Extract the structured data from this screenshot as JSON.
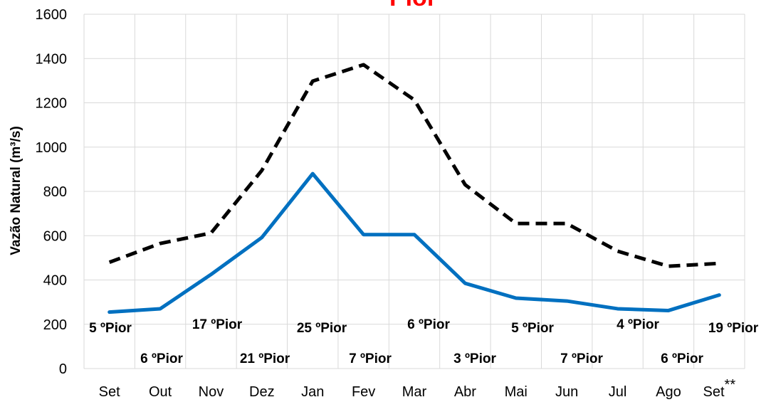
{
  "chart_data": {
    "type": "line",
    "title": "Pior",
    "title_color": "#ff0000",
    "xlabel": "",
    "ylabel": "Vazão Natural (m³/s)",
    "ylim": [
      0,
      1600
    ],
    "yticks": [
      0,
      200,
      400,
      600,
      800,
      1000,
      1200,
      1400,
      1600
    ],
    "grid": true,
    "categories": [
      "Set",
      "Out",
      "Nov",
      "Dez",
      "Jan",
      "Fev",
      "Mar",
      "Abr",
      "Mai",
      "Jun",
      "Jul",
      "Ago",
      "Set**"
    ],
    "series": [
      {
        "style": "dashed",
        "color": "#000000",
        "values": [
          480,
          565,
          612,
          895,
          1298,
          1372,
          1213,
          830,
          655,
          655,
          530,
          462,
          475
        ]
      },
      {
        "style": "solid",
        "color": "#0070c0",
        "values": [
          255,
          270,
          425,
          592,
          880,
          605,
          605,
          385,
          318,
          305,
          270,
          262,
          332
        ]
      }
    ],
    "annotations": [
      "5 ºPior",
      "6 ºPior",
      "17 ºPior",
      "21 ºPior",
      "25 ºPior",
      "7 ºPior",
      "6 ºPior",
      "3 ºPior",
      "5 ºPior",
      "7 ºPior",
      "4 ºPior",
      "6 ºPior",
      "19 ºPior"
    ]
  }
}
